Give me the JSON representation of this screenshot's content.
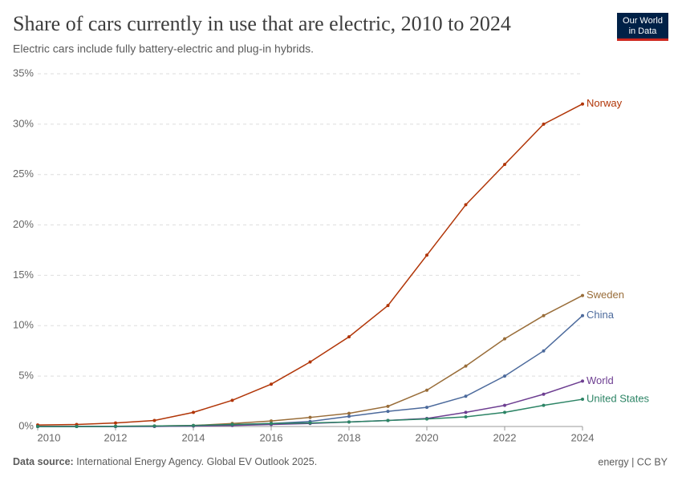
{
  "chart_data": {
    "type": "line",
    "title": "Share of cars currently in use that are electric, 2010 to 2024",
    "subtitle": "Electric cars include fully battery-electric and plug-in hybrids.",
    "logo": [
      "Our World",
      "in Data"
    ],
    "source_label": "Data source:",
    "source": "International Energy Agency. Global EV Outlook 2025.",
    "license": "energy | CC BY",
    "x": [
      2010,
      2011,
      2012,
      2013,
      2014,
      2015,
      2016,
      2017,
      2018,
      2019,
      2020,
      2021,
      2022,
      2023,
      2024
    ],
    "xlim": [
      2010,
      2024
    ],
    "xticks": [
      2010,
      2012,
      2014,
      2016,
      2018,
      2020,
      2022,
      2024
    ],
    "ylim": [
      0,
      35
    ],
    "yticks": [
      {
        "value": 0,
        "label": "0%"
      },
      {
        "value": 5,
        "label": "5%"
      },
      {
        "value": 10,
        "label": "10%"
      },
      {
        "value": 15,
        "label": "15%"
      },
      {
        "value": 20,
        "label": "20%"
      },
      {
        "value": 25,
        "label": "25%"
      },
      {
        "value": 30,
        "label": "30%"
      },
      {
        "value": 35,
        "label": "35%"
      }
    ],
    "grid": true,
    "series": [
      {
        "name": "Norway",
        "color": "#b13507",
        "values": [
          0.15,
          0.2,
          0.35,
          0.6,
          1.4,
          2.6,
          4.2,
          6.4,
          8.9,
          12,
          17,
          22,
          26,
          30,
          32
        ]
      },
      {
        "name": "Sweden",
        "color": "#996d39",
        "values": [
          0,
          0,
          0.02,
          0.05,
          0.1,
          0.3,
          0.55,
          0.9,
          1.3,
          2,
          3.6,
          6,
          8.7,
          11,
          13
        ]
      },
      {
        "name": "China",
        "color": "#4c6a9c",
        "values": [
          0,
          0,
          0,
          0,
          0.05,
          0.15,
          0.3,
          0.5,
          1.0,
          1.5,
          1.9,
          3,
          5,
          7.5,
          11
        ]
      },
      {
        "name": "World",
        "color": "#6d3e91",
        "values": [
          0,
          0,
          0,
          0.02,
          0.05,
          0.1,
          0.2,
          0.3,
          0.45,
          0.6,
          0.8,
          1.4,
          2.1,
          3.2,
          4.5
        ]
      },
      {
        "name": "United States",
        "color": "#2c8465",
        "values": [
          0,
          0,
          0.02,
          0.05,
          0.1,
          0.2,
          0.3,
          0.35,
          0.45,
          0.6,
          0.75,
          0.95,
          1.4,
          2.1,
          2.7
        ]
      }
    ]
  }
}
